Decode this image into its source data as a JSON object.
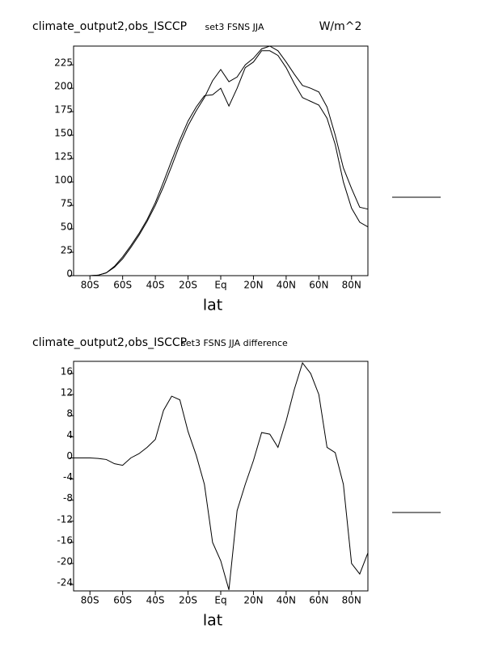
{
  "chart_data": [
    {
      "type": "line",
      "title": "climate_output2,obs_ISCCP",
      "subtitle": "set3 FSNS JJA",
      "units": "W/m^2",
      "xlabel": "lat",
      "x": [
        -90,
        -85,
        -80,
        -75,
        -70,
        -65,
        -60,
        -55,
        -50,
        -45,
        -40,
        -35,
        -30,
        -25,
        -20,
        -15,
        -10,
        -5,
        0,
        5,
        10,
        15,
        20,
        25,
        30,
        35,
        40,
        45,
        50,
        55,
        60,
        65,
        70,
        75,
        80,
        85,
        90
      ],
      "series": [
        {
          "color": "#000000",
          "values": [
            0,
            0,
            0,
            0.5,
            3,
            9,
            18,
            30,
            43,
            58,
            75,
            95,
            117,
            140,
            160,
            176,
            190,
            208,
            220,
            207,
            212,
            225,
            232,
            242,
            245,
            240,
            228,
            215,
            203,
            200,
            196,
            180,
            150,
            115,
            93,
            73,
            71
          ]
        },
        {
          "color": "#000000",
          "values": [
            0,
            0,
            0,
            0.5,
            3,
            10,
            20,
            32,
            45,
            60,
            78,
            100,
            123,
            145,
            165,
            180,
            192,
            193,
            200,
            181,
            200,
            222,
            228,
            240,
            240,
            235,
            222,
            205,
            190,
            186,
            182,
            168,
            140,
            100,
            72,
            57,
            52
          ]
        }
      ],
      "xlim": [
        -90,
        90
      ],
      "xticks": [
        {
          "value": -80,
          "label": "80S"
        },
        {
          "value": -60,
          "label": "60S"
        },
        {
          "value": -40,
          "label": "40S"
        },
        {
          "value": -20,
          "label": "20S"
        },
        {
          "value": 0,
          "label": "Eq"
        },
        {
          "value": 20,
          "label": "20N"
        },
        {
          "value": 40,
          "label": "40N"
        },
        {
          "value": 60,
          "label": "60N"
        },
        {
          "value": 80,
          "label": "80N"
        }
      ],
      "ylim": [
        0,
        245
      ],
      "yticks": [
        0,
        25,
        50,
        75,
        100,
        125,
        150,
        175,
        200,
        225
      ],
      "grid": false
    },
    {
      "type": "line",
      "title": "climate_output2,obs_ISCCP",
      "subtitle": "set3 FSNS JJA difference",
      "xlabel": "lat",
      "x": [
        -90,
        -85,
        -80,
        -75,
        -70,
        -65,
        -60,
        -55,
        -50,
        -45,
        -40,
        -35,
        -30,
        -25,
        -20,
        -15,
        -10,
        -5,
        0,
        5,
        10,
        15,
        20,
        25,
        30,
        35,
        40,
        45,
        50,
        55,
        60,
        65,
        70,
        75,
        80,
        85,
        90
      ],
      "series": [
        {
          "color": "#000000",
          "values": [
            0,
            0,
            0,
            -0.1,
            -0.3,
            -1.1,
            -1.4,
            0,
            0.8,
            2,
            3.5,
            9,
            11.7,
            11,
            5,
            0.5,
            -5,
            -16,
            -19.5,
            -25,
            -10,
            -5,
            -0.5,
            4.8,
            4.5,
            2,
            7,
            13,
            18,
            16,
            12,
            2,
            1,
            -5,
            -20,
            -22,
            -18
          ]
        }
      ],
      "xlim": [
        -90,
        90
      ],
      "xticks": [
        {
          "value": -80,
          "label": "80S"
        },
        {
          "value": -60,
          "label": "60S"
        },
        {
          "value": -40,
          "label": "40S"
        },
        {
          "value": -20,
          "label": "20S"
        },
        {
          "value": 0,
          "label": "Eq"
        },
        {
          "value": 20,
          "label": "20N"
        },
        {
          "value": 40,
          "label": "40N"
        },
        {
          "value": 60,
          "label": "60N"
        },
        {
          "value": 80,
          "label": "80N"
        }
      ],
      "ylim": [
        -25.2,
        18.3
      ],
      "yticks": [
        -24,
        -20,
        -16,
        -12,
        -8,
        -4,
        0,
        4,
        8,
        12,
        16
      ],
      "grid": false
    }
  ]
}
